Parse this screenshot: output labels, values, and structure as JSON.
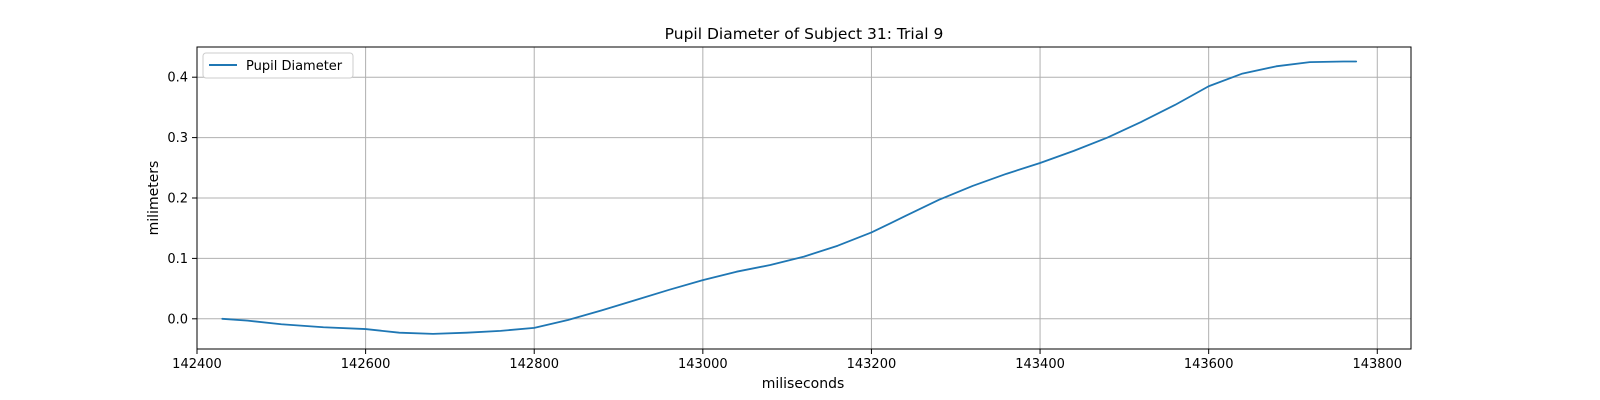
{
  "chart_data": {
    "type": "line",
    "title": "Pupil Diameter of Subject 31: Trial 9",
    "xlabel": "miliseconds",
    "ylabel": "milimeters",
    "xlim": [
      142400,
      143840
    ],
    "ylim": [
      -0.05,
      0.45
    ],
    "xticks": [
      142400,
      142600,
      142800,
      143000,
      143200,
      143400,
      143600,
      143800
    ],
    "yticks": [
      0.0,
      0.1,
      0.2,
      0.3,
      0.4
    ],
    "xtick_labels": [
      "142400",
      "142600",
      "142800",
      "143000",
      "143200",
      "143400",
      "143600",
      "143800"
    ],
    "ytick_labels": [
      "0.0",
      "0.1",
      "0.2",
      "0.3",
      "0.4"
    ],
    "grid": true,
    "legend": {
      "placement": "upper-left",
      "entries": [
        "Pupil Diameter"
      ]
    },
    "series": [
      {
        "name": "Pupil Diameter",
        "color": "#1f77b4",
        "x": [
          142430,
          142460,
          142500,
          142550,
          142600,
          142640,
          142680,
          142720,
          142760,
          142800,
          142840,
          142880,
          142920,
          142960,
          143000,
          143040,
          143080,
          143120,
          143160,
          143200,
          143240,
          143280,
          143320,
          143360,
          143400,
          143440,
          143480,
          143520,
          143560,
          143600,
          143640,
          143680,
          143720,
          143760,
          143775
        ],
        "y": [
          0.0,
          -0.003,
          -0.009,
          -0.014,
          -0.017,
          -0.023,
          -0.025,
          -0.023,
          -0.02,
          -0.015,
          -0.002,
          0.014,
          0.031,
          0.048,
          0.064,
          0.078,
          0.089,
          0.103,
          0.121,
          0.143,
          0.17,
          0.197,
          0.22,
          0.24,
          0.258,
          0.278,
          0.3,
          0.326,
          0.354,
          0.385,
          0.406,
          0.418,
          0.425,
          0.426,
          0.426
        ]
      }
    ]
  }
}
